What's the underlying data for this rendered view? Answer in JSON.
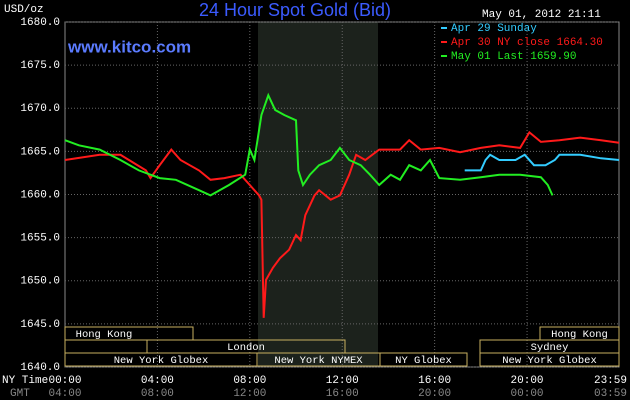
{
  "chart_data": {
    "type": "line",
    "title": "24 Hour Spot Gold (Bid)",
    "watermark": "www.kitco.com",
    "timestamp": "May 01, 2012 21:11",
    "ylabel": "USD/oz",
    "xlabel": "NY Time",
    "x2label": "GMT",
    "xlim": [
      0,
      23.98
    ],
    "ylim": [
      1640,
      1680
    ],
    "grid": true,
    "yticks": [
      {
        "value": 1640,
        "label": "1640.0"
      },
      {
        "value": 1645,
        "label": "1645.0"
      },
      {
        "value": 1650,
        "label": "1650.0"
      },
      {
        "value": 1655,
        "label": "1655.0"
      },
      {
        "value": 1660,
        "label": "1660.0"
      },
      {
        "value": 1665,
        "label": "1665.0"
      },
      {
        "value": 1670,
        "label": "1670.0"
      },
      {
        "value": 1675,
        "label": "1675.0"
      },
      {
        "value": 1680,
        "label": "1680.0"
      }
    ],
    "xticks": [
      {
        "value": 0,
        "label": "00:00"
      },
      {
        "value": 4,
        "label": "04:00"
      },
      {
        "value": 8,
        "label": "08:00"
      },
      {
        "value": 12,
        "label": "12:00"
      },
      {
        "value": 16,
        "label": "16:00"
      },
      {
        "value": 20,
        "label": "20:00"
      },
      {
        "value": 23.98,
        "label": "23:59"
      }
    ],
    "x2ticks": [
      {
        "value": 0,
        "label": "04:00"
      },
      {
        "value": 4,
        "label": "08:00"
      },
      {
        "value": 8,
        "label": "12:00"
      },
      {
        "value": 12,
        "label": "16:00"
      },
      {
        "value": 16,
        "label": "20:00"
      },
      {
        "value": 20,
        "label": "00:00"
      },
      {
        "value": 23.98,
        "label": "03:59"
      }
    ],
    "sessions": [
      "Hong Kong",
      "Hong Kong",
      "London",
      "Sydney",
      "New York Globex",
      "New York NYMEX",
      "NY Globex",
      "New York Globex"
    ],
    "series": [
      {
        "name": "Apr 29 Sunday",
        "color": "#33ccff",
        "x": [
          17.3,
          18.0,
          18.2,
          18.4,
          18.8,
          19.5,
          19.9,
          20.3,
          20.8,
          21.2,
          21.4,
          22.3,
          23.2,
          23.98
        ],
        "values": [
          1662.8,
          1662.8,
          1664.0,
          1664.6,
          1664.0,
          1664.0,
          1664.6,
          1663.4,
          1663.4,
          1664.0,
          1664.6,
          1664.6,
          1664.2,
          1664.0
        ]
      },
      {
        "name": "Apr 30 NY close 1664.30",
        "color": "#ff1a1a",
        "x": [
          0,
          1.5,
          2.4,
          3.5,
          3.7,
          4.1,
          4.6,
          5.0,
          5.8,
          6.3,
          6.9,
          7.6,
          8.0,
          8.4,
          8.5,
          8.6,
          8.7,
          9.0,
          9.3,
          9.7,
          10.0,
          10.2,
          10.4,
          10.8,
          11.0,
          11.5,
          11.9,
          12.3,
          12.6,
          13.0,
          13.6,
          14.5,
          14.9,
          15.4,
          16.2,
          17.1,
          18.0,
          18.8,
          19.7,
          20.1,
          20.6,
          21.4,
          22.3,
          23.2,
          23.98
        ],
        "values": [
          1664.0,
          1664.6,
          1664.6,
          1662.8,
          1661.9,
          1663.4,
          1665.2,
          1664.0,
          1662.8,
          1661.7,
          1661.9,
          1662.3,
          1661.1,
          1659.9,
          1659.4,
          1645.7,
          1650.1,
          1651.5,
          1652.6,
          1653.6,
          1655.3,
          1654.7,
          1657.6,
          1659.9,
          1660.5,
          1659.4,
          1659.9,
          1662.3,
          1664.6,
          1664.0,
          1665.2,
          1665.2,
          1666.3,
          1665.2,
          1665.4,
          1664.9,
          1665.4,
          1665.7,
          1665.4,
          1667.2,
          1666.1,
          1666.3,
          1666.6,
          1666.3,
          1666.0
        ]
      },
      {
        "name": "May 01 Last 1659.90",
        "color": "#22ee22",
        "x": [
          0,
          0.6,
          1.5,
          2.4,
          3.2,
          4.1,
          4.8,
          5.8,
          6.3,
          7.1,
          7.8,
          8.0,
          8.2,
          8.5,
          8.8,
          9.1,
          9.5,
          10.0,
          10.1,
          10.3,
          10.6,
          11.0,
          11.5,
          11.9,
          12.3,
          12.8,
          13.2,
          13.6,
          14.1,
          14.5,
          14.9,
          15.4,
          15.8,
          16.2,
          17.1,
          18.0,
          18.8,
          19.7,
          20.6,
          20.9,
          21.1
        ],
        "values": [
          1666.3,
          1665.7,
          1665.2,
          1664.0,
          1662.8,
          1661.9,
          1661.7,
          1660.5,
          1659.9,
          1661.1,
          1662.3,
          1665.2,
          1664.0,
          1669.2,
          1671.5,
          1669.8,
          1669.2,
          1668.6,
          1662.8,
          1661.1,
          1662.3,
          1663.4,
          1664.0,
          1665.4,
          1664.0,
          1663.4,
          1662.3,
          1661.1,
          1662.3,
          1661.7,
          1663.4,
          1662.8,
          1664.0,
          1661.9,
          1661.7,
          1662.0,
          1662.3,
          1662.3,
          1662.0,
          1661.1,
          1659.9
        ]
      }
    ]
  }
}
